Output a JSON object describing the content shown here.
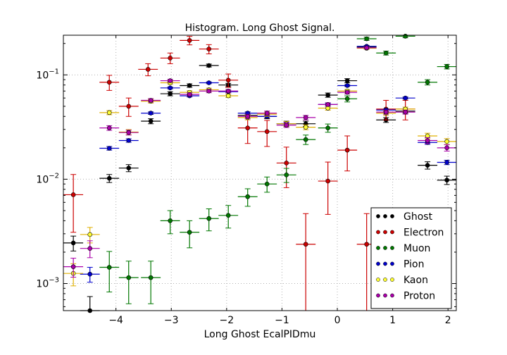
{
  "chart_data": {
    "type": "scatter",
    "title": "Histogram. Long Ghost Signal.",
    "xlabel": "Long Ghost EcalPIDmu",
    "ylabel": "",
    "xlim": [
      -4.95,
      2.15
    ],
    "ylim": [
      0.00055,
      0.24
    ],
    "yscale": "log",
    "grid": true,
    "legend_position": "lower-right",
    "x_ticks": [
      {
        "value": -4,
        "label": "−4"
      },
      {
        "value": -3,
        "label": "−3"
      },
      {
        "value": -2,
        "label": "−2"
      },
      {
        "value": -1,
        "label": "−1"
      },
      {
        "value": 0,
        "label": "0"
      },
      {
        "value": 1,
        "label": "1"
      },
      {
        "value": 2,
        "label": "2"
      }
    ],
    "y_ticks": [
      {
        "value": 0.001,
        "base": "10",
        "exp": "−3"
      },
      {
        "value": 0.01,
        "base": "10",
        "exp": "−2"
      },
      {
        "value": 0.1,
        "base": "10",
        "exp": "−1"
      }
    ],
    "bin_half_width": 0.1775,
    "series": [
      {
        "name": "Ghost",
        "color": "#000000",
        "fill": "#000000",
        "points": [
          [
            -4.77,
            0.00245,
            0.0004
          ],
          [
            -4.47,
            0.00055,
            0.0002
          ],
          [
            -4.12,
            0.0102,
            0.0009
          ],
          [
            -3.77,
            0.0128,
            0.001
          ],
          [
            -3.37,
            0.036,
            0.002
          ],
          [
            -3.02,
            0.066,
            0.003
          ],
          [
            -2.67,
            0.079,
            0.003
          ],
          [
            -2.32,
            0.123,
            0.004
          ],
          [
            -1.97,
            0.08,
            0.003
          ],
          [
            -1.62,
            0.041,
            0.002
          ],
          [
            -1.27,
            0.04,
            0.002
          ],
          [
            -0.92,
            0.034,
            0.002
          ],
          [
            -0.57,
            0.034,
            0.002
          ],
          [
            -0.17,
            0.064,
            0.003
          ],
          [
            0.18,
            0.088,
            0.004
          ],
          [
            0.53,
            0.185,
            0.006
          ],
          [
            0.88,
            0.037,
            0.002
          ],
          [
            1.23,
            0.045,
            0.002
          ],
          [
            1.63,
            0.0136,
            0.0011
          ],
          [
            1.98,
            0.0098,
            0.0009
          ]
        ]
      },
      {
        "name": "Electron",
        "color": "#cc0000",
        "fill": "#cc0000",
        "points": [
          [
            -4.77,
            0.0071,
            0.004
          ],
          [
            -4.12,
            0.085,
            0.014
          ],
          [
            -3.77,
            0.05,
            0.01
          ],
          [
            -3.42,
            0.113,
            0.015
          ],
          [
            -3.02,
            0.145,
            0.017
          ],
          [
            -2.67,
            0.214,
            0.02
          ],
          [
            -2.32,
            0.177,
            0.018
          ],
          [
            -1.97,
            0.089,
            0.013
          ],
          [
            -1.62,
            0.031,
            0.009
          ],
          [
            -1.27,
            0.0286,
            0.008
          ],
          [
            -0.92,
            0.0143,
            0.006
          ],
          [
            -0.57,
            0.00238,
            0.0023
          ],
          [
            -0.17,
            0.0096,
            0.005
          ],
          [
            0.18,
            0.019,
            0.007
          ],
          [
            0.53,
            0.00238,
            0.0023
          ],
          [
            0.88,
            0.047,
            0.01
          ],
          [
            1.23,
            0.047,
            0.01
          ]
        ]
      },
      {
        "name": "Muon",
        "color": "#007700",
        "fill": "#007700",
        "points": [
          [
            -4.12,
            0.00143,
            0.0006
          ],
          [
            -3.77,
            0.00114,
            0.0005
          ],
          [
            -3.37,
            0.00114,
            0.0005
          ],
          [
            -3.02,
            0.004,
            0.001
          ],
          [
            -2.67,
            0.0031,
            0.0009
          ],
          [
            -2.32,
            0.0042,
            0.001
          ],
          [
            -1.97,
            0.0045,
            0.0011
          ],
          [
            -1.62,
            0.0068,
            0.0013
          ],
          [
            -1.27,
            0.009,
            0.0015
          ],
          [
            -0.92,
            0.011,
            0.0017
          ],
          [
            -0.57,
            0.024,
            0.0025
          ],
          [
            -0.17,
            0.031,
            0.0028
          ],
          [
            0.18,
            0.059,
            0.004
          ],
          [
            0.53,
            0.222,
            0.008
          ],
          [
            0.88,
            0.162,
            0.007
          ],
          [
            1.23,
            0.235,
            0.008
          ],
          [
            1.63,
            0.085,
            0.005
          ],
          [
            1.98,
            0.12,
            0.006
          ]
        ]
      },
      {
        "name": "Pion",
        "color": "#0000cc",
        "fill": "#0000cc",
        "points": [
          [
            -4.47,
            0.00123,
            0.0002
          ],
          [
            -4.12,
            0.0198,
            0.0008
          ],
          [
            -3.77,
            0.0235,
            0.0009
          ],
          [
            -3.37,
            0.043,
            0.0012
          ],
          [
            -3.02,
            0.075,
            0.0016
          ],
          [
            -2.67,
            0.063,
            0.0015
          ],
          [
            -2.32,
            0.084,
            0.0017
          ],
          [
            -1.97,
            0.069,
            0.0016
          ],
          [
            -1.62,
            0.043,
            0.0012
          ],
          [
            -1.27,
            0.04,
            0.0012
          ],
          [
            -0.92,
            0.034,
            0.0011
          ],
          [
            -0.17,
            0.052,
            0.0013
          ],
          [
            0.18,
            0.079,
            0.0016
          ],
          [
            0.53,
            0.188,
            0.0025
          ],
          [
            0.88,
            0.046,
            0.0012
          ],
          [
            1.23,
            0.06,
            0.0014
          ],
          [
            1.63,
            0.0225,
            0.0009
          ],
          [
            1.98,
            0.0145,
            0.0007
          ]
        ]
      },
      {
        "name": "Kaon",
        "color": "#e0b000",
        "fill": "#ffff33",
        "points": [
          [
            -4.77,
            0.00125,
            0.0003
          ],
          [
            -4.47,
            0.00295,
            0.0005
          ],
          [
            -4.12,
            0.0435,
            0.002
          ],
          [
            -3.77,
            0.0283,
            0.0016
          ],
          [
            -3.37,
            0.056,
            0.0023
          ],
          [
            -3.02,
            0.084,
            0.0028
          ],
          [
            -2.67,
            0.068,
            0.0025
          ],
          [
            -2.32,
            0.072,
            0.0026
          ],
          [
            -1.97,
            0.063,
            0.0024
          ],
          [
            -1.62,
            0.039,
            0.0019
          ],
          [
            -1.27,
            0.042,
            0.002
          ],
          [
            -0.92,
            0.034,
            0.0018
          ],
          [
            -0.57,
            0.0315,
            0.0017
          ],
          [
            -0.17,
            0.048,
            0.0021
          ],
          [
            0.18,
            0.07,
            0.0025
          ],
          [
            0.53,
            0.18,
            0.004
          ],
          [
            0.88,
            0.043,
            0.002
          ],
          [
            1.23,
            0.047,
            0.0021
          ],
          [
            1.63,
            0.026,
            0.0016
          ],
          [
            1.98,
            0.023,
            0.0015
          ]
        ]
      },
      {
        "name": "Proton",
        "color": "#aa00aa",
        "fill": "#aa00aa",
        "points": [
          [
            -4.77,
            0.00145,
            0.0003
          ],
          [
            -4.47,
            0.00217,
            0.0004
          ],
          [
            -4.12,
            0.031,
            0.0016
          ],
          [
            -3.77,
            0.028,
            0.0015
          ],
          [
            -3.37,
            0.057,
            0.0022
          ],
          [
            -3.02,
            0.088,
            0.0027
          ],
          [
            -2.67,
            0.065,
            0.0024
          ],
          [
            -2.32,
            0.07,
            0.0025
          ],
          [
            -1.97,
            0.07,
            0.0025
          ],
          [
            -1.62,
            0.04,
            0.0019
          ],
          [
            -1.27,
            0.043,
            0.002
          ],
          [
            -0.92,
            0.033,
            0.0017
          ],
          [
            -0.57,
            0.039,
            0.0019
          ],
          [
            -0.17,
            0.052,
            0.0021
          ],
          [
            0.18,
            0.068,
            0.0024
          ],
          [
            0.53,
            0.182,
            0.004
          ],
          [
            0.88,
            0.044,
            0.002
          ],
          [
            1.23,
            0.044,
            0.002
          ],
          [
            1.63,
            0.0235,
            0.0015
          ],
          [
            1.98,
            0.02,
            0.0014
          ]
        ]
      }
    ]
  }
}
